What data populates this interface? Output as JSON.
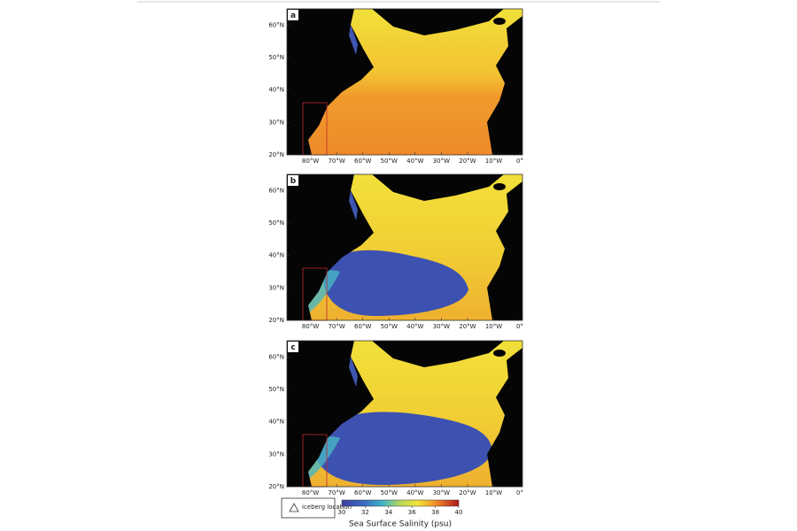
{
  "panels": [
    {
      "label": "a"
    },
    {
      "label": "b"
    },
    {
      "label": "c"
    }
  ],
  "lat_axis": {
    "lim": [
      20,
      65
    ],
    "ticks": [
      {
        "value": 20,
        "label": "20°N"
      },
      {
        "value": 30,
        "label": "30°N"
      },
      {
        "value": 40,
        "label": "40°N"
      },
      {
        "value": 50,
        "label": "50°N"
      },
      {
        "value": 60,
        "label": "60°N"
      }
    ]
  },
  "lon_axis": {
    "lim": [
      -89,
      1
    ],
    "ticks": [
      {
        "value": -80,
        "label": "80°W"
      },
      {
        "value": -70,
        "label": "70°W"
      },
      {
        "value": -60,
        "label": "60°W"
      },
      {
        "value": -50,
        "label": "50°W"
      },
      {
        "value": -40,
        "label": "40°W"
      },
      {
        "value": -30,
        "label": "30°W"
      },
      {
        "value": -20,
        "label": "20°W"
      },
      {
        "value": -10,
        "label": "10°W"
      },
      {
        "value": 0,
        "label": "0°"
      }
    ]
  },
  "colorbar": {
    "lim": [
      30,
      40
    ],
    "ticks": [
      30,
      32,
      34,
      36,
      38,
      40
    ],
    "label": "Sea Surface Salinity (psu)"
  },
  "legend": {
    "label": "iceberg location"
  }
}
